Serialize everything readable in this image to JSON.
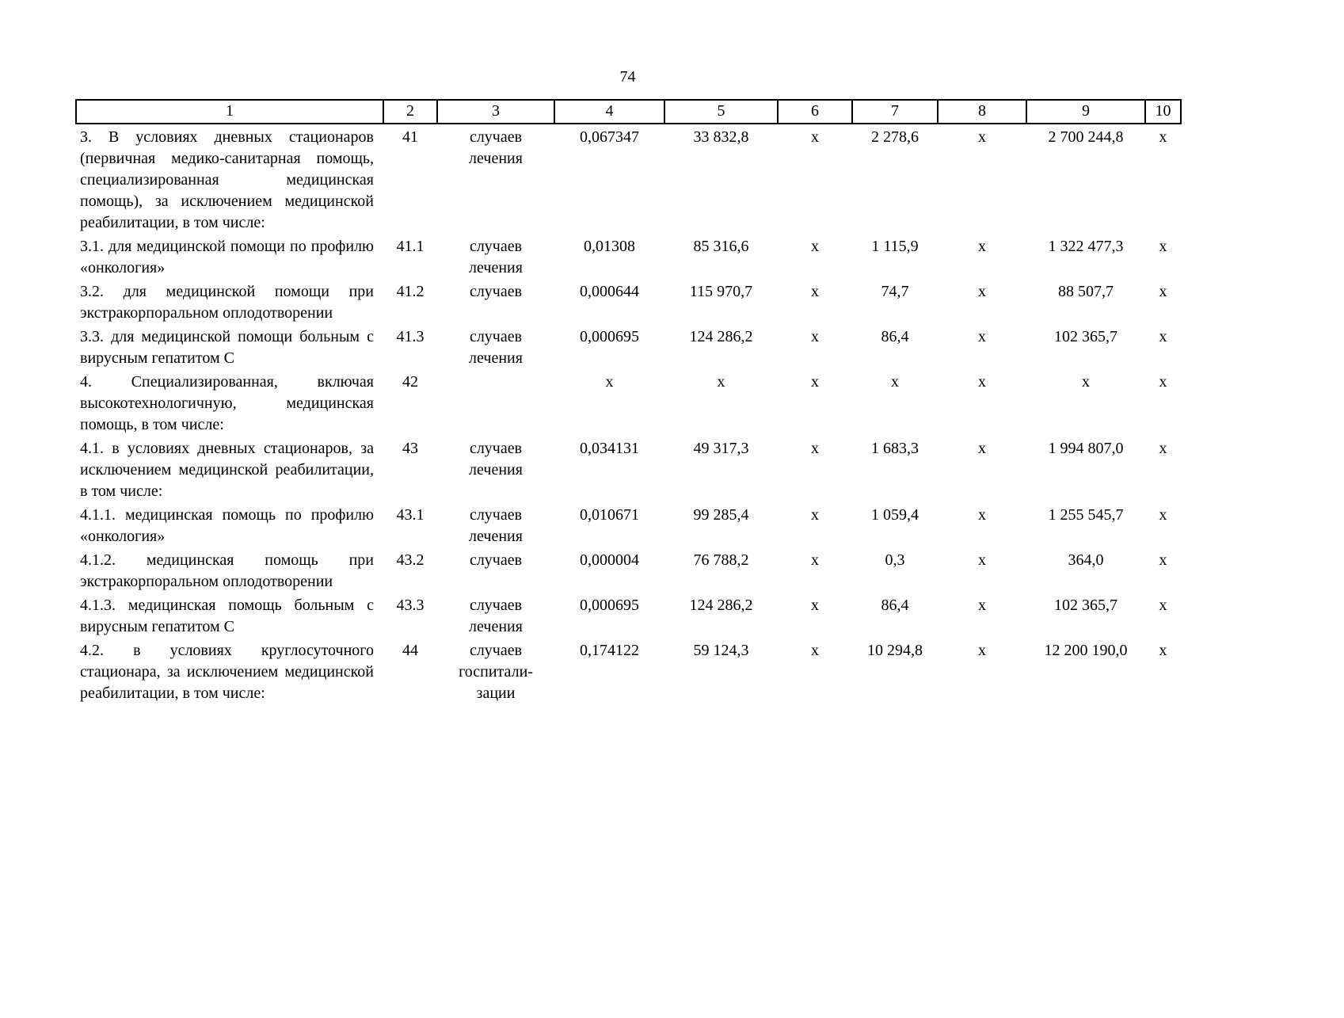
{
  "page": {
    "number": "74"
  },
  "table": {
    "column_numbers": [
      "1",
      "2",
      "3",
      "4",
      "5",
      "6",
      "7",
      "8",
      "9",
      "10"
    ],
    "cell_names": [
      "indicator-name-cell",
      "line-number-cell",
      "unit-cell",
      "value-col-4-cell",
      "value-col-5-cell",
      "value-col-6-cell",
      "value-col-7-cell",
      "value-col-8-cell",
      "value-col-9-cell",
      "value-col-10-cell"
    ],
    "rows": [
      {
        "cells": [
          "3. В условиях дневных стационаров (первичная медико-санитарная помощь, специализированная медицинская помощь), за исключением медицинской реабилитации, в том числе:",
          "41",
          "случаев\nлечения",
          "0,067347",
          "33 832,8",
          "х",
          "2 278,6",
          "х",
          "2 700 244,8",
          "х"
        ]
      },
      {
        "cells": [
          "3.1. для медицинской помощи по профилю «онкология»",
          "41.1",
          "случаев\nлечения",
          "0,01308",
          "85 316,6",
          "х",
          "1 115,9",
          "х",
          "1 322 477,3",
          "х"
        ]
      },
      {
        "cells": [
          "3.2. для медицинской помощи при экстракорпоральном оплодотворении",
          "41.2",
          "случаев",
          "0,000644",
          "115 970,7",
          "х",
          "74,7",
          "х",
          "88 507,7",
          "х"
        ]
      },
      {
        "cells": [
          "3.3. для медицинской помощи больным с вирусным гепатитом С",
          "41.3",
          "случаев\nлечения",
          "0,000695",
          "124 286,2",
          "х",
          "86,4",
          "х",
          "102 365,7",
          "х"
        ]
      },
      {
        "cells": [
          "4. Специализированная, включая высокотехнологичную, медицинская помощь, в том числе:",
          "42",
          "",
          "х",
          "х",
          "х",
          "х",
          "х",
          "х",
          "х"
        ]
      },
      {
        "cells": [
          "4.1. в условиях дневных стационаров, за исключением медицинской реабилитации, в том числе:",
          "43",
          "случаев\nлечения",
          "0,034131",
          "49 317,3",
          "х",
          "1 683,3",
          "х",
          "1 994 807,0",
          "х"
        ]
      },
      {
        "cells": [
          "4.1.1. медицинская помощь по профилю «онкология»",
          "43.1",
          "случаев\nлечения",
          "0,010671",
          "99 285,4",
          "х",
          "1 059,4",
          "х",
          "1 255 545,7",
          "х"
        ]
      },
      {
        "cells": [
          "4.1.2. медицинская помощь при экстракорпоральном оплодотворении",
          "43.2",
          "случаев",
          "0,000004",
          "76 788,2",
          "х",
          "0,3",
          "х",
          "364,0",
          "х"
        ]
      },
      {
        "cells": [
          "4.1.3. медицинская помощь больным с вирусным гепатитом С",
          "43.3",
          "случаев\nлечения",
          "0,000695",
          "124 286,2",
          "х",
          "86,4",
          "х",
          "102 365,7",
          "х"
        ]
      },
      {
        "cells": [
          "4.2. в условиях круглосуточного стационара, за исключением медицинской реабилитации, в том числе:",
          "44",
          "случаев\nгоспитали-\nзации",
          "0,174122",
          "59 124,3",
          "х",
          "10 294,8",
          "х",
          "12 200 190,0",
          "х"
        ]
      }
    ]
  }
}
